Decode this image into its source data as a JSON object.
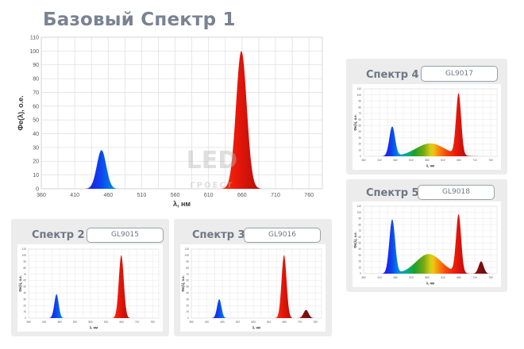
{
  "page": {
    "title": "Базовый Спектр 1",
    "watermark_main": "LED",
    "watermark_sub": "ГРОЕСТ"
  },
  "panels": [
    {
      "id": "spectrum-2",
      "title": "Спектр 2",
      "model": "GL9015"
    },
    {
      "id": "spectrum-3",
      "title": "Спектр 3",
      "model": "GL9016"
    },
    {
      "id": "spectrum-4",
      "title": "Спектр 4",
      "model": "GL9017"
    },
    {
      "id": "spectrum-5",
      "title": "Спектр 5",
      "model": "GL9018"
    }
  ],
  "chart_data": [
    {
      "id": "spectrum-1",
      "type": "area",
      "title": "Базовый Спектр 1",
      "xlabel": "λ, нм",
      "ylabel": "Фе(λ), о.е.",
      "xlim": [
        360,
        780
      ],
      "ylim": [
        0,
        110
      ],
      "xticks": [
        360,
        410,
        460,
        510,
        560,
        610,
        660,
        710,
        760
      ],
      "yticks": [
        0,
        10,
        20,
        30,
        40,
        50,
        60,
        70,
        80,
        90,
        100,
        110
      ],
      "grid": true,
      "peaks": [
        {
          "center": 450,
          "height": 28,
          "width": 7
        },
        {
          "center": 659,
          "height": 100,
          "width": 8
        }
      ]
    },
    {
      "id": "spectrum-2",
      "type": "area",
      "title": "Спектр 2",
      "xlabel": "λ, нм",
      "ylabel": "Фе(λ), о.е.",
      "xlim": [
        360,
        780
      ],
      "ylim": [
        0,
        110
      ],
      "xticks": [
        360,
        410,
        460,
        510,
        560,
        610,
        660,
        710,
        760
      ],
      "yticks": [
        0,
        10,
        20,
        30,
        40,
        50,
        60,
        70,
        80,
        90,
        100,
        110
      ],
      "grid": true,
      "peaks": [
        {
          "center": 450,
          "height": 38,
          "width": 7
        },
        {
          "center": 659,
          "height": 100,
          "width": 8
        }
      ]
    },
    {
      "id": "spectrum-3",
      "type": "area",
      "title": "Спектр 3",
      "xlabel": "λ, нм",
      "ylabel": "Фе(λ), о.е.",
      "xlim": [
        360,
        780
      ],
      "ylim": [
        0,
        110
      ],
      "xticks": [
        360,
        410,
        460,
        510,
        560,
        610,
        660,
        710,
        760
      ],
      "yticks": [
        0,
        10,
        20,
        30,
        40,
        50,
        60,
        70,
        80,
        90,
        100,
        110
      ],
      "grid": true,
      "peaks": [
        {
          "center": 450,
          "height": 30,
          "width": 7
        },
        {
          "center": 659,
          "height": 100,
          "width": 8
        },
        {
          "center": 730,
          "height": 13,
          "width": 8
        }
      ]
    },
    {
      "id": "spectrum-4",
      "type": "area",
      "title": "Спектр 4",
      "xlabel": "λ, нм",
      "ylabel": "Фе(λ), о.е.",
      "xlim": [
        360,
        780
      ],
      "ylim": [
        0,
        110
      ],
      "xticks": [
        360,
        410,
        460,
        510,
        560,
        610,
        660,
        710,
        760
      ],
      "yticks": [
        0,
        10,
        20,
        30,
        40,
        50,
        60,
        70,
        80,
        90,
        100,
        110
      ],
      "grid": true,
      "peaks": [
        {
          "center": 450,
          "height": 48,
          "width": 9
        },
        {
          "center": 570,
          "height": 21,
          "width": 45
        },
        {
          "center": 659,
          "height": 100,
          "width": 8
        }
      ]
    },
    {
      "id": "spectrum-5",
      "type": "area",
      "title": "Спектр 5",
      "xlabel": "λ, нм",
      "ylabel": "Фе(λ), о.е.",
      "xlim": [
        360,
        780
      ],
      "ylim": [
        0,
        110
      ],
      "xticks": [
        360,
        410,
        460,
        510,
        560,
        610,
        660,
        710,
        760
      ],
      "yticks": [
        0,
        10,
        20,
        30,
        40,
        50,
        60,
        70,
        80,
        90,
        100,
        110
      ],
      "grid": true,
      "peaks": [
        {
          "center": 450,
          "height": 88,
          "width": 9
        },
        {
          "center": 565,
          "height": 32,
          "width": 40
        },
        {
          "center": 659,
          "height": 95,
          "width": 8
        },
        {
          "center": 730,
          "height": 20,
          "width": 8
        }
      ]
    }
  ]
}
